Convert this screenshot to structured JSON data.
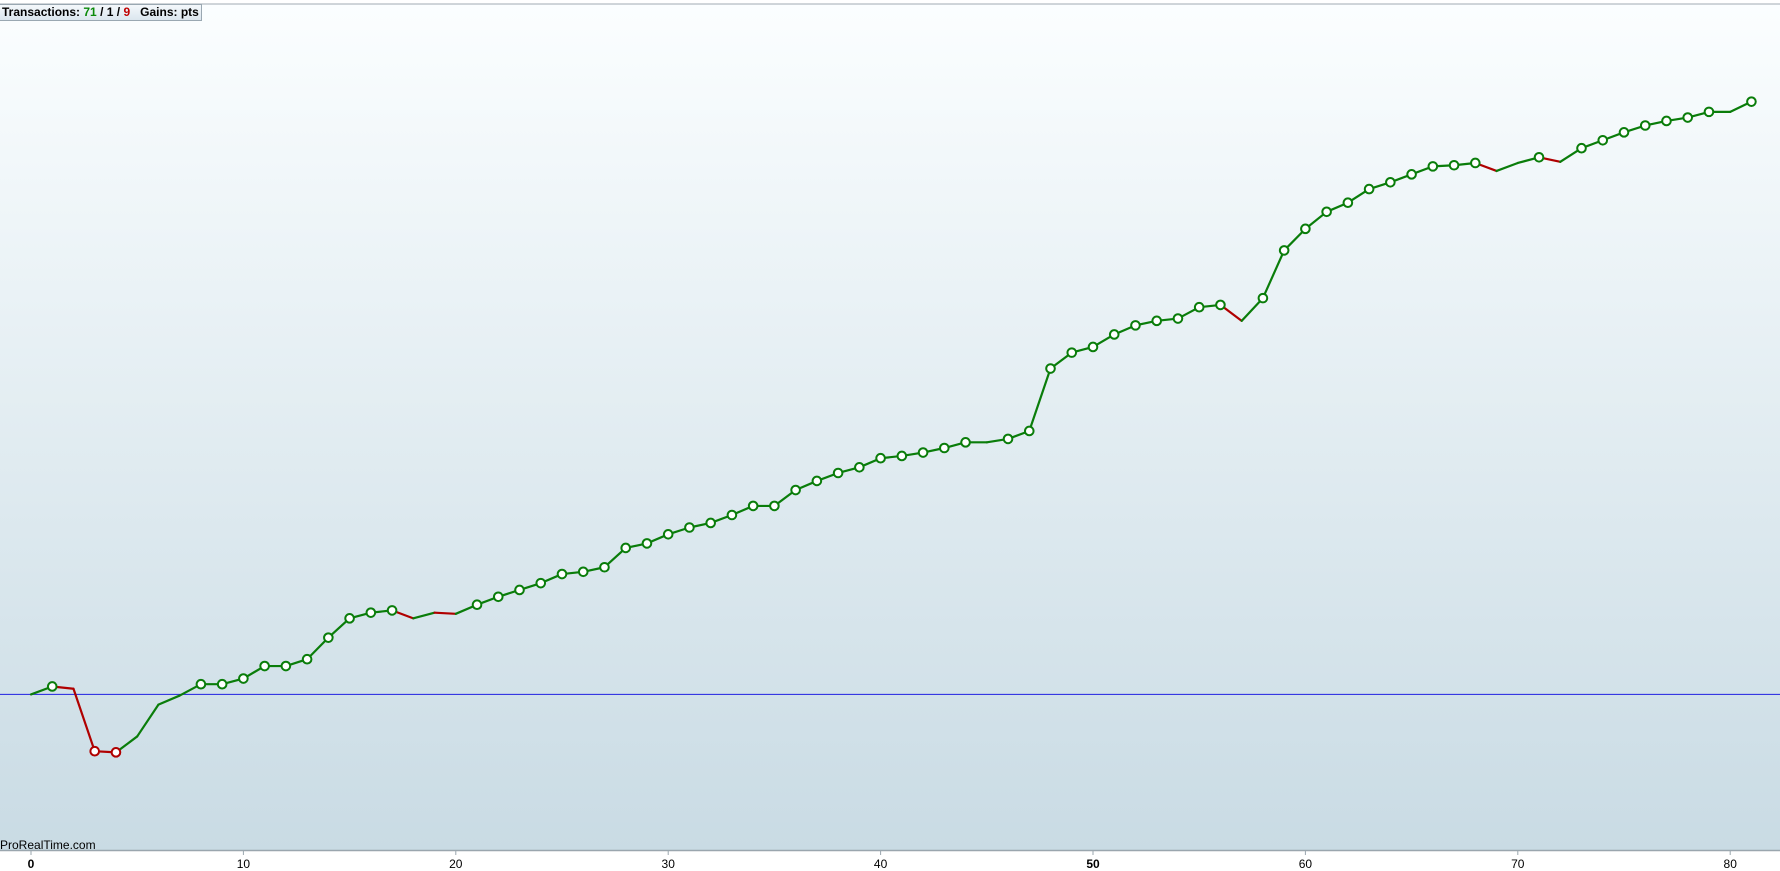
{
  "header": {
    "transactions_label": "Transactions:",
    "winners": "71",
    "sep1": " / ",
    "breakeven": "1",
    "sep2": " / ",
    "losers": "9",
    "gains_label": "Gains:",
    "gains_unit": "pts"
  },
  "brand": "ProRealTime.com",
  "colors": {
    "win": "#0a7d0a",
    "loss": "#b00000",
    "zero_line": "#2020e0",
    "bg_top": "#fbfeff",
    "bg_bottom": "#c9dbe4"
  },
  "chart_data": {
    "type": "line",
    "title": "",
    "xlabel": "",
    "ylabel": "",
    "xlim": [
      0,
      82
    ],
    "ylim": [
      -137,
      608
    ],
    "x_ticks": [
      0,
      10,
      20,
      30,
      40,
      50,
      60,
      70,
      80
    ],
    "x_tick_labels": [
      "0",
      "10",
      "20",
      "30",
      "40",
      "50",
      "60",
      "70",
      "80"
    ],
    "bold_ticks": [
      "0",
      "50"
    ],
    "zero_line": 0,
    "grid": false,
    "x": [
      0,
      1,
      2,
      3,
      4,
      5,
      6,
      7,
      8,
      9,
      10,
      11,
      12,
      13,
      14,
      15,
      16,
      17,
      18,
      19,
      20,
      21,
      22,
      23,
      24,
      25,
      26,
      27,
      28,
      29,
      30,
      31,
      32,
      33,
      34,
      35,
      36,
      37,
      38,
      39,
      40,
      41,
      42,
      43,
      44,
      45,
      46,
      47,
      48,
      49,
      50,
      51,
      52,
      53,
      54,
      55,
      56,
      57,
      58,
      59,
      60,
      61,
      62,
      63,
      64,
      65,
      66,
      67,
      68,
      69,
      70,
      71,
      72,
      73,
      74,
      75,
      76,
      77,
      78,
      79,
      80,
      81
    ],
    "values": [
      0,
      7,
      5,
      -50,
      -51,
      -37,
      -9,
      -1,
      9,
      9,
      14,
      25,
      25,
      31,
      50,
      67,
      72,
      74,
      67,
      72,
      71,
      79,
      86,
      92,
      98,
      106,
      108,
      112,
      129,
      133,
      141,
      147,
      151,
      158,
      166,
      166,
      180,
      188,
      195,
      200,
      208,
      210,
      213,
      217,
      222,
      222,
      225,
      232,
      287,
      301,
      306,
      317,
      325,
      329,
      331,
      341,
      343,
      329,
      349,
      391,
      410,
      425,
      433,
      445,
      451,
      458,
      465,
      466,
      468,
      461,
      468,
      473,
      469,
      481,
      488,
      495,
      501,
      505,
      508,
      513,
      513,
      522
    ],
    "markers": [
      0,
      1,
      0,
      1,
      1,
      0,
      0,
      0,
      1,
      1,
      1,
      1,
      1,
      1,
      1,
      1,
      1,
      1,
      0,
      0,
      0,
      1,
      1,
      1,
      1,
      1,
      1,
      1,
      1,
      1,
      1,
      1,
      1,
      1,
      1,
      1,
      1,
      1,
      1,
      1,
      1,
      1,
      1,
      1,
      1,
      0,
      1,
      1,
      1,
      1,
      1,
      1,
      1,
      1,
      1,
      1,
      1,
      0,
      1,
      1,
      1,
      1,
      1,
      1,
      1,
      1,
      1,
      1,
      1,
      0,
      0,
      1,
      0,
      1,
      1,
      1,
      1,
      1,
      1,
      1,
      0,
      1
    ]
  }
}
